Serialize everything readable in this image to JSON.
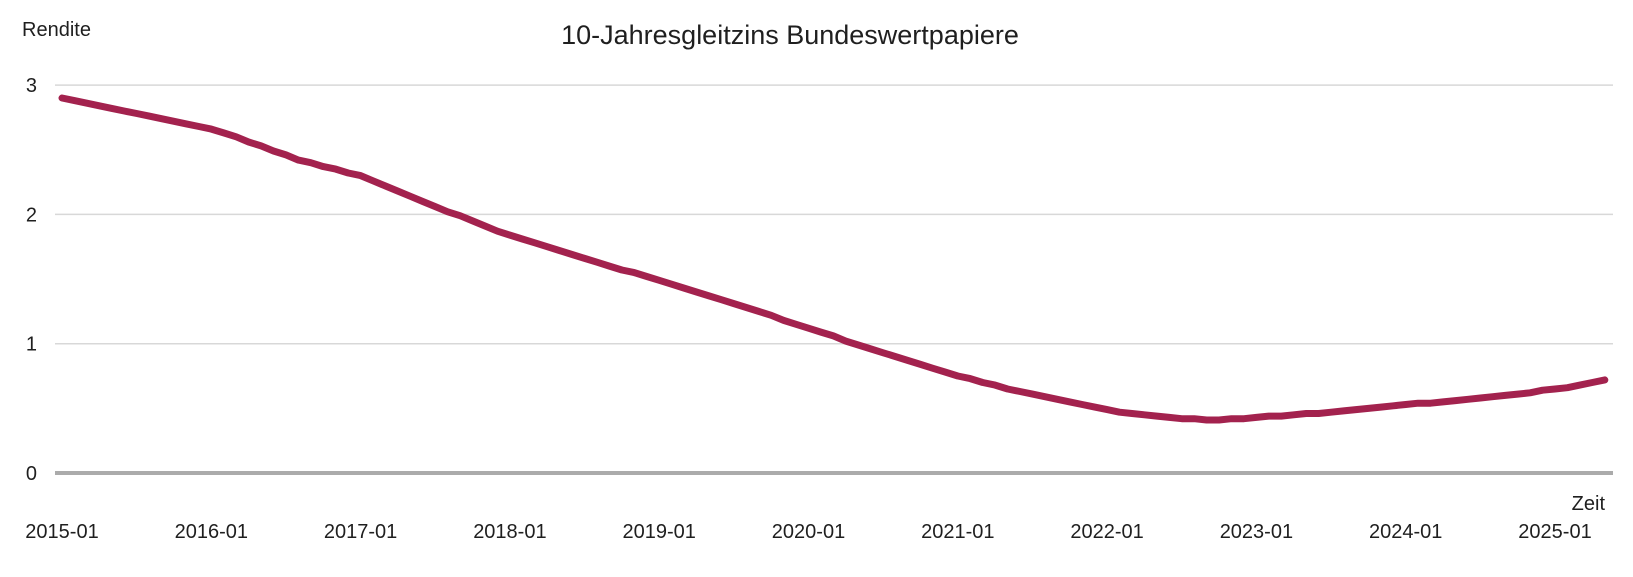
{
  "title": "10-Jahresgleitzins Bundeswertpapiere",
  "y_axis_label": "Rendite",
  "x_axis_label": "Zeit",
  "colors": {
    "line": "#A3224E",
    "grid": "#D8D8D8",
    "zero_axis": "#ABABAB",
    "text": "#1F1F1F"
  },
  "chart_data": {
    "type": "line",
    "title": "10-Jahresgleitzins Bundeswertpapiere",
    "xlabel": "Zeit",
    "ylabel": "Rendite",
    "x_start": "2015-01",
    "x_end": "2025-05",
    "x_step": "1 month",
    "x_tick_labels": [
      "2015-01",
      "2016-01",
      "2017-01",
      "2018-01",
      "2019-01",
      "2020-01",
      "2021-01",
      "2022-01",
      "2023-01",
      "2024-01",
      "2025-01"
    ],
    "y_ticks": [
      0,
      1,
      2,
      3
    ],
    "ylim": [
      0,
      3.2
    ],
    "grid": true,
    "legend_position": "none",
    "line_color": "#A3224E",
    "series": [
      {
        "name": "10-Jahresgleitzins Bundeswertpapiere",
        "values": [
          2.9,
          2.88,
          2.86,
          2.84,
          2.82,
          2.8,
          2.78,
          2.76,
          2.74,
          2.72,
          2.7,
          2.68,
          2.66,
          2.63,
          2.6,
          2.56,
          2.53,
          2.49,
          2.46,
          2.42,
          2.4,
          2.37,
          2.35,
          2.32,
          2.3,
          2.26,
          2.22,
          2.18,
          2.14,
          2.1,
          2.06,
          2.02,
          1.99,
          1.95,
          1.91,
          1.87,
          1.84,
          1.81,
          1.78,
          1.75,
          1.72,
          1.69,
          1.66,
          1.63,
          1.6,
          1.57,
          1.55,
          1.52,
          1.49,
          1.46,
          1.43,
          1.4,
          1.37,
          1.34,
          1.31,
          1.28,
          1.25,
          1.22,
          1.18,
          1.15,
          1.12,
          1.09,
          1.06,
          1.02,
          0.99,
          0.96,
          0.93,
          0.9,
          0.87,
          0.84,
          0.81,
          0.78,
          0.75,
          0.73,
          0.7,
          0.68,
          0.65,
          0.63,
          0.61,
          0.59,
          0.57,
          0.55,
          0.53,
          0.51,
          0.49,
          0.47,
          0.46,
          0.45,
          0.44,
          0.43,
          0.42,
          0.42,
          0.41,
          0.41,
          0.42,
          0.42,
          0.43,
          0.44,
          0.44,
          0.45,
          0.46,
          0.46,
          0.47,
          0.48,
          0.49,
          0.5,
          0.51,
          0.52,
          0.53,
          0.54,
          0.54,
          0.55,
          0.56,
          0.57,
          0.58,
          0.59,
          0.6,
          0.61,
          0.62,
          0.64,
          0.65,
          0.66,
          0.68,
          0.7,
          0.72
        ]
      }
    ]
  }
}
